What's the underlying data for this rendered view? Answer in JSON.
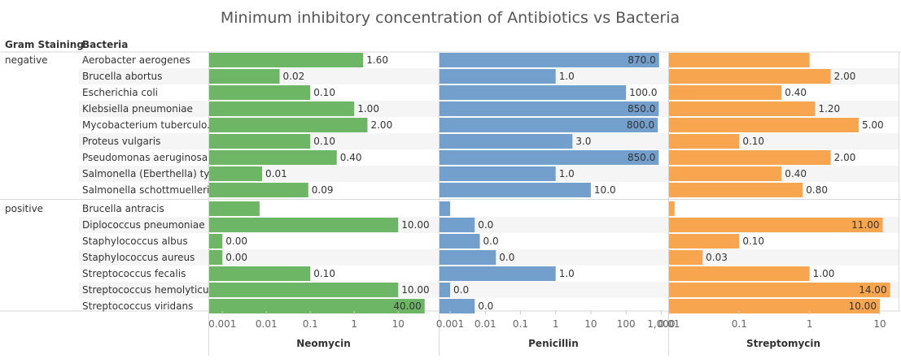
{
  "chart_data": {
    "type": "bar",
    "title": "Minimum inhibitory concentration of Antibiotics vs Bacteria",
    "row_headers": [
      "Gram Staining",
      "Bacteria"
    ],
    "groups": [
      {
        "name": "negative",
        "bacteria": [
          "Aerobacter aerogenes",
          "Brucella abortus",
          "Escherichia coli",
          "Klebsiella pneumoniae",
          "Mycobacterium tuberculo..",
          "Proteus vulgaris",
          "Pseudomonas aeruginosa",
          "Salmonella (Eberthella) ty..",
          "Salmonella schottmuelleri"
        ]
      },
      {
        "name": "positive",
        "bacteria": [
          "Brucella antracis",
          "Diplococcus pneumoniae",
          "Staphylococcus albus",
          "Staphylococcus aureus",
          "Streptococcus fecalis",
          "Streptococcus hemolyticus",
          "Streptococcus viridans"
        ]
      }
    ],
    "scale": "log",
    "series": [
      {
        "name": "Neomycin",
        "color": "#6db665",
        "xlim": [
          0.0005,
          80
        ],
        "ticks": [
          "0.001",
          "0.01",
          "0.1",
          "1",
          "10"
        ],
        "tick_values": [
          0.001,
          0.01,
          0.1,
          1,
          10
        ],
        "values": [
          1.6,
          0.02,
          0.1,
          1.0,
          2.0,
          0.1,
          0.4,
          0.008,
          0.09,
          0.007,
          10.0,
          0.001,
          0.001,
          0.1,
          10.0,
          40.0
        ],
        "labels": [
          "1.60",
          "0.02",
          "0.10",
          "1.00",
          "2.00",
          "0.10",
          "0.40",
          "0.01",
          "0.09",
          "",
          "10.00",
          "0.00",
          "0.00",
          "0.10",
          "10.00",
          "40.00"
        ]
      },
      {
        "name": "Penicillin",
        "color": "#729fcb",
        "xlim": [
          0.0005,
          1500
        ],
        "ticks": [
          "0.001",
          "0.01",
          "0.1",
          "1",
          "10",
          "100",
          "1,000"
        ],
        "tick_values": [
          0.001,
          0.01,
          0.1,
          1,
          10,
          100,
          1000
        ],
        "values": [
          870,
          1.0,
          100,
          850,
          800,
          3.0,
          850,
          1.0,
          10.0,
          0.001,
          0.005,
          0.007,
          0.02,
          1.0,
          0.001,
          0.005
        ],
        "labels": [
          "870.0",
          "1.0",
          "100.0",
          "850.0",
          "800.0",
          "3.0",
          "850.0",
          "1.0",
          "10.0",
          "",
          "0.0",
          "0.0",
          "0.0",
          "1.0",
          "0.0",
          "0.0"
        ]
      },
      {
        "name": "Streptomycin",
        "color": "#f8a54f",
        "xlim": [
          0.01,
          18
        ],
        "ticks": [
          "0.01",
          "0.1",
          "1",
          "10"
        ],
        "tick_values": [
          0.01,
          0.1,
          1,
          10
        ],
        "values": [
          1.0,
          2.0,
          0.4,
          1.2,
          5.0,
          0.1,
          2.0,
          0.4,
          0.8,
          0.012,
          11.0,
          0.1,
          0.03,
          1.0,
          14.0,
          10.0
        ],
        "labels": [
          "",
          "2.00",
          "0.40",
          "1.20",
          "5.00",
          "0.10",
          "2.00",
          "0.40",
          "0.80",
          "",
          "11.00",
          "0.10",
          "0.03",
          "1.00",
          "14.00",
          "10.00"
        ]
      }
    ]
  }
}
